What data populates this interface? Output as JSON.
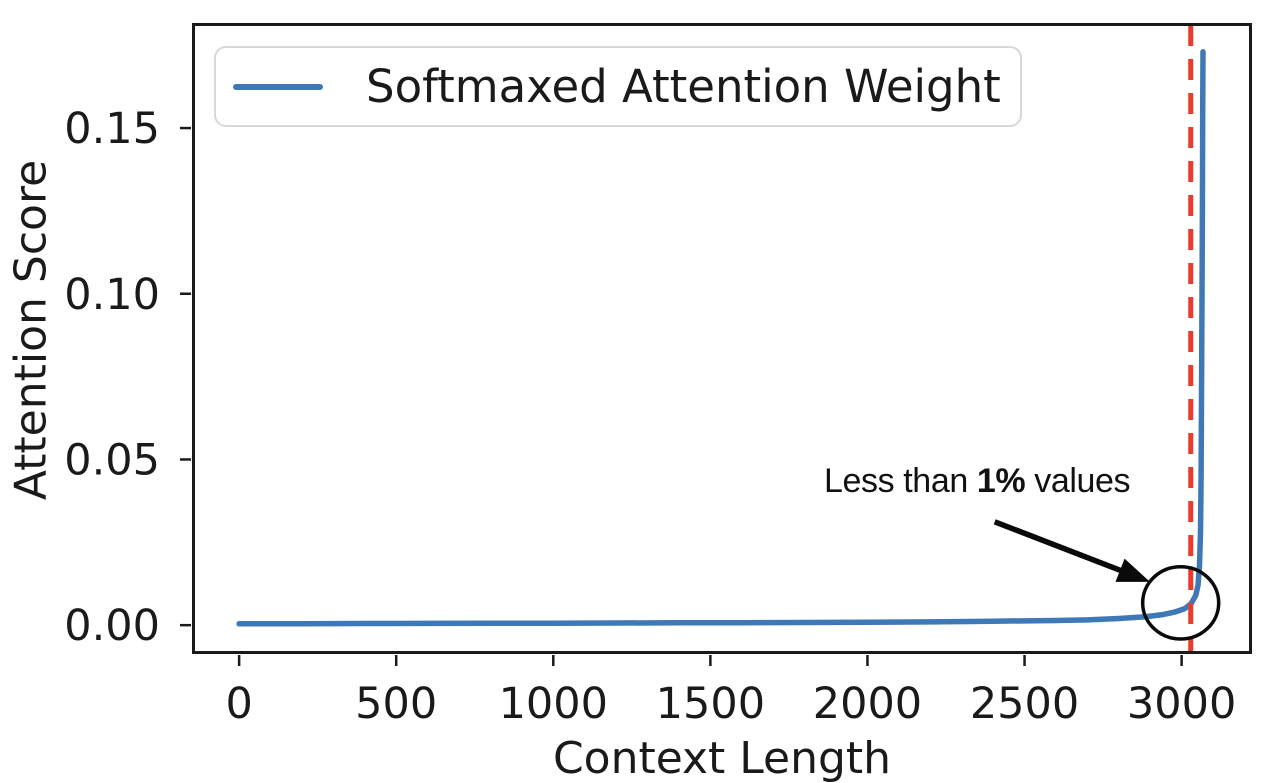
{
  "figure": {
    "background": "#ffffff",
    "frame_color": "#1a1a1a"
  },
  "legend": {
    "label": "Softmaxed Attention Weight",
    "line_color": "#3f78b6",
    "position": "upper left"
  },
  "annotation": {
    "prefix": "Less than ",
    "bold": "1%",
    "suffix": " values"
  },
  "chart_data": {
    "type": "line",
    "title": "",
    "xlabel": "Context Length",
    "ylabel": "Attention Score",
    "xlim": [
      -150,
      3224
    ],
    "ylim": [
      -0.0087,
      0.1817
    ],
    "grid": false,
    "legend_position": "upper left",
    "xticks": {
      "values": [
        0,
        500,
        1000,
        1500,
        2000,
        2500,
        3000
      ],
      "labels": [
        "0",
        "500",
        "1000",
        "1500",
        "2000",
        "2500",
        "3000"
      ]
    },
    "yticks": {
      "values": [
        0.0,
        0.05,
        0.1,
        0.15
      ],
      "labels": [
        "0.00",
        "0.05",
        "0.10",
        "0.15"
      ]
    },
    "series": [
      {
        "name": "Softmaxed Attention Weight",
        "color": "#3f78b6",
        "points": [
          [
            0,
            0.0004
          ],
          [
            200,
            0.00045
          ],
          [
            400,
            0.0005
          ],
          [
            600,
            0.00052
          ],
          [
            800,
            0.00055
          ],
          [
            1000,
            0.0006
          ],
          [
            1200,
            0.00065
          ],
          [
            1400,
            0.0007
          ],
          [
            1600,
            0.00075
          ],
          [
            1800,
            0.0008
          ],
          [
            2000,
            0.0009
          ],
          [
            2200,
            0.001
          ],
          [
            2400,
            0.0012
          ],
          [
            2600,
            0.0014
          ],
          [
            2700,
            0.0016
          ],
          [
            2800,
            0.002
          ],
          [
            2880,
            0.0025
          ],
          [
            2940,
            0.0032
          ],
          [
            2980,
            0.004
          ],
          [
            3010,
            0.005
          ],
          [
            3030,
            0.0065
          ],
          [
            3045,
            0.009
          ],
          [
            3052,
            0.012
          ],
          [
            3057,
            0.018
          ],
          [
            3060,
            0.028
          ],
          [
            3062,
            0.045
          ],
          [
            3064,
            0.08
          ],
          [
            3066,
            0.125
          ],
          [
            3067,
            0.155
          ],
          [
            3068,
            0.173
          ]
        ]
      }
    ],
    "vline": {
      "x": 3029,
      "color": "#ea3b2e",
      "style": "dashed"
    },
    "annotations": {
      "text": "Less than 1% values",
      "circle": {
        "x": 2997,
        "y": 0.00673,
        "rx": 121,
        "ry": 0.0109
      },
      "arrow": {
        "from": [
          2405,
          0.0312
        ],
        "to": [
          2899,
          0.0131
        ]
      },
      "color": "#0a0a0a"
    }
  }
}
